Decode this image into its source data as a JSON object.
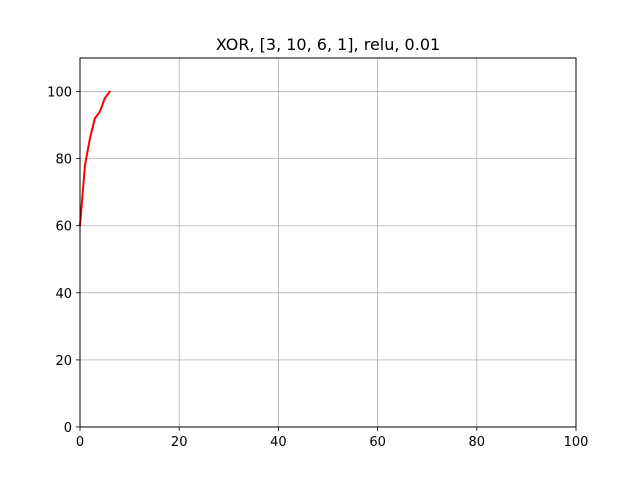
{
  "chart_data": {
    "type": "line",
    "title": "XOR, [3, 10, 6, 1], relu, 0.01",
    "xlabel": "",
    "ylabel": "",
    "xlim": [
      0,
      100
    ],
    "ylim": [
      0,
      110
    ],
    "x_ticks": [
      0,
      20,
      40,
      60,
      80,
      100
    ],
    "y_ticks": [
      0,
      20,
      40,
      60,
      80,
      100
    ],
    "x_tick_labels": [
      "0",
      "20",
      "40",
      "60",
      "80",
      "100"
    ],
    "y_tick_labels": [
      "0",
      "20",
      "40",
      "60",
      "80",
      "100"
    ],
    "grid": true,
    "series": [
      {
        "color": "#ff0000",
        "x": [
          0,
          1,
          2,
          3,
          4,
          5,
          6
        ],
        "y": [
          60,
          78,
          86,
          92,
          94,
          98,
          100
        ]
      }
    ]
  }
}
